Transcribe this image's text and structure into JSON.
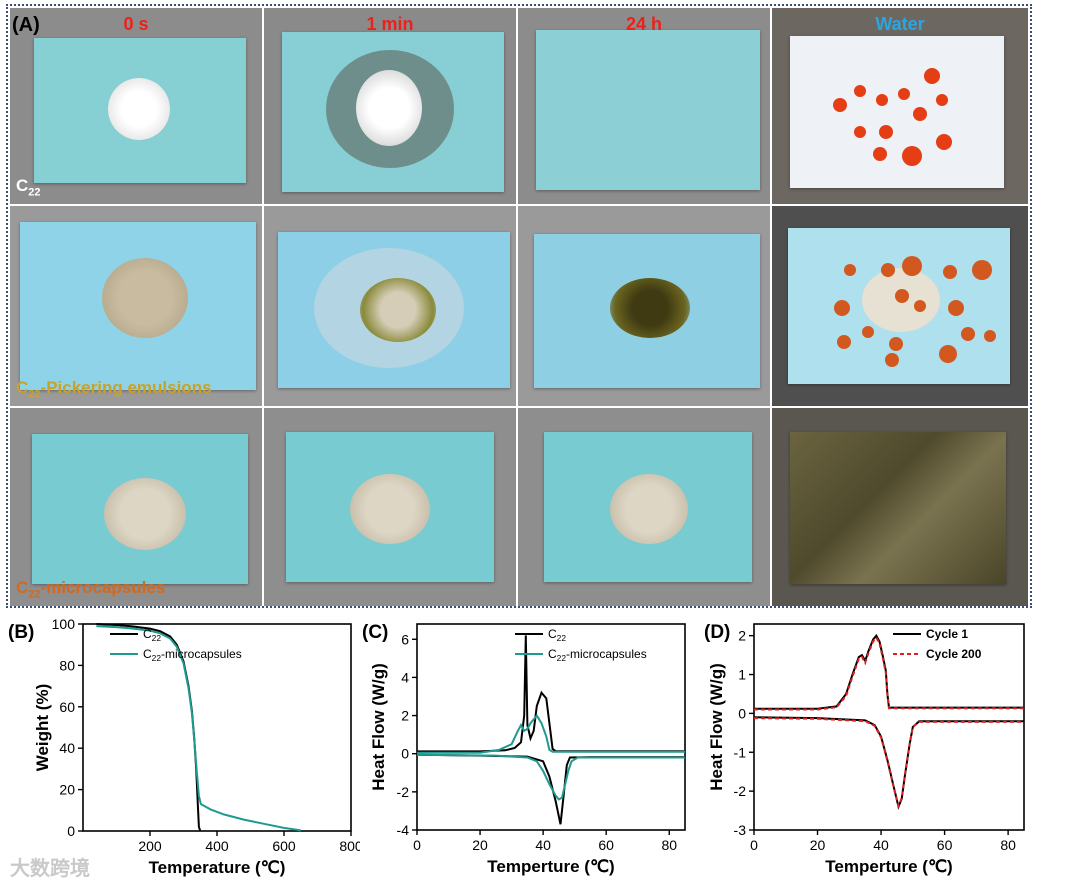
{
  "panel_a": {
    "letter": "(A)",
    "columns": [
      "0 s",
      "1 min",
      "24 h",
      "Water"
    ],
    "rows": [
      {
        "base": "C",
        "sub": "22",
        "suffix": ""
      },
      {
        "base": "C",
        "sub": "22",
        "suffix": "-Pickering emulsions"
      },
      {
        "base": "C",
        "sub": "22",
        "suffix": "-microcapsules"
      }
    ],
    "colors": {
      "time_label": "#e8231b",
      "water_label": "#2aa7df",
      "row1": "#ffffff",
      "row2": "#c9a227",
      "row3": "#d2691e"
    }
  },
  "watermark": "大数跨境",
  "chart_data": [
    {
      "panel": "(B)",
      "type": "line",
      "xlabel": "Temperature (℃)",
      "ylabel": "Weight (%)",
      "xlim": [
        0,
        800
      ],
      "ylim": [
        0,
        100
      ],
      "xticks": [
        "200",
        "400",
        "600",
        "800"
      ],
      "yticks": [
        "0",
        "20",
        "40",
        "60",
        "80",
        "100"
      ],
      "legend_position": "top-right",
      "series": [
        {
          "name": "C22",
          "name_base": "C",
          "name_sub": "22",
          "name_suffix": "",
          "color": "#000000",
          "points": [
            [
              40,
              100
            ],
            [
              100,
              99.5
            ],
            [
              150,
              98.8
            ],
            [
              200,
              97.8
            ],
            [
              230,
              96.5
            ],
            [
              260,
              94
            ],
            [
              280,
              90
            ],
            [
              300,
              82
            ],
            [
              315,
              70
            ],
            [
              325,
              58
            ],
            [
              332,
              45
            ],
            [
              338,
              30
            ],
            [
              343,
              12
            ],
            [
              346,
              2
            ],
            [
              350,
              0
            ]
          ]
        },
        {
          "name": "C22-microcapsules",
          "name_base": "C",
          "name_sub": "22",
          "name_suffix": "-microcapsules",
          "color": "#1f9a8e",
          "points": [
            [
              40,
              99
            ],
            [
              100,
              98.5
            ],
            [
              150,
              97.8
            ],
            [
              200,
              96.8
            ],
            [
              230,
              95.5
            ],
            [
              260,
              93
            ],
            [
              280,
              89
            ],
            [
              300,
              81
            ],
            [
              315,
              69
            ],
            [
              325,
              57
            ],
            [
              333,
              42
            ],
            [
              340,
              28
            ],
            [
              346,
              17
            ],
            [
              352,
              13
            ],
            [
              380,
              10.5
            ],
            [
              420,
              8
            ],
            [
              480,
              5.5
            ],
            [
              540,
              3.5
            ],
            [
              600,
              1.5
            ],
            [
              650,
              0.3
            ]
          ]
        }
      ]
    },
    {
      "panel": "(C)",
      "type": "line",
      "xlabel": "Temperture (℃)",
      "ylabel": "Heat Flow (W/g)",
      "xlim": [
        0,
        85
      ],
      "ylim": [
        -4,
        6.8
      ],
      "xticks": [
        "0",
        "20",
        "40",
        "60",
        "80"
      ],
      "yticks": [
        "-4",
        "-2",
        "0",
        "2",
        "4",
        "6"
      ],
      "legend_position": "top-right",
      "series": [
        {
          "name": "C22 heating",
          "legend_name": "C22",
          "name_base": "C",
          "name_sub": "22",
          "name_suffix": "",
          "color": "#000000",
          "points": [
            [
              0,
              0.12
            ],
            [
              20,
              0.12
            ],
            [
              28,
              0.18
            ],
            [
              31,
              0.3
            ],
            [
              33,
              0.6
            ],
            [
              34,
              2
            ],
            [
              34.5,
              6.2
            ],
            [
              35,
              1.5
            ],
            [
              36,
              0.8
            ],
            [
              37,
              1.2
            ],
            [
              38,
              2.5
            ],
            [
              39.5,
              3.2
            ],
            [
              41,
              2.9
            ],
            [
              42,
              1.6
            ],
            [
              43,
              0.25
            ],
            [
              44,
              0.13
            ],
            [
              85,
              0.13
            ]
          ]
        },
        {
          "name": "C22 cooling",
          "legend_name": "",
          "color": "#000000",
          "points": [
            [
              0,
              -0.05
            ],
            [
              20,
              -0.1
            ],
            [
              35,
              -0.15
            ],
            [
              40,
              -0.4
            ],
            [
              42,
              -1.2
            ],
            [
              44,
              -2.5
            ],
            [
              45.5,
              -3.7
            ],
            [
              46.5,
              -2.2
            ],
            [
              47.5,
              -0.6
            ],
            [
              48.5,
              -0.2
            ],
            [
              55,
              -0.18
            ],
            [
              85,
              -0.18
            ]
          ]
        },
        {
          "name": "C22-microcapsules heating",
          "legend_name": "C22-microcapsules",
          "name_base": "C",
          "name_sub": "22",
          "name_suffix": "-microcapsules",
          "color": "#1f9a8e",
          "points": [
            [
              0,
              0.05
            ],
            [
              20,
              0.05
            ],
            [
              26,
              0.2
            ],
            [
              30,
              0.5
            ],
            [
              32,
              1.2
            ],
            [
              33,
              1.5
            ],
            [
              34,
              1.2
            ],
            [
              35,
              1.3
            ],
            [
              36,
              1.6
            ],
            [
              38,
              2.0
            ],
            [
              39.5,
              1.6
            ],
            [
              41,
              0.9
            ],
            [
              42,
              0.2
            ],
            [
              43,
              0.1
            ],
            [
              85,
              0.1
            ]
          ]
        },
        {
          "name": "C22-microcapsules cooling",
          "legend_name": "",
          "color": "#1f9a8e",
          "points": [
            [
              0,
              -0.05
            ],
            [
              25,
              -0.1
            ],
            [
              35,
              -0.2
            ],
            [
              38,
              -0.4
            ],
            [
              40,
              -0.9
            ],
            [
              42,
              -1.6
            ],
            [
              44,
              -2.2
            ],
            [
              45,
              -2.4
            ],
            [
              46,
              -2.3
            ],
            [
              47,
              -1.6
            ],
            [
              48,
              -0.9
            ],
            [
              49,
              -0.4
            ],
            [
              51,
              -0.2
            ],
            [
              60,
              -0.2
            ],
            [
              85,
              -0.2
            ]
          ]
        }
      ]
    },
    {
      "panel": "(D)",
      "type": "line",
      "xlabel": "Temperture (℃)",
      "ylabel": "Heat Flow (W/g)",
      "xlim": [
        0,
        85
      ],
      "ylim": [
        -3,
        2.3
      ],
      "xticks": [
        "0",
        "20",
        "40",
        "60",
        "80"
      ],
      "yticks": [
        "-3",
        "-2",
        "-1",
        "0",
        "1",
        "2"
      ],
      "legend_position": "top-right",
      "series": [
        {
          "name": "Cycle 1",
          "legend_name": "Cycle 1",
          "name_base": "Cycle 1",
          "name_sub": "",
          "name_suffix": "",
          "color": "#000000",
          "dash": "",
          "points": [
            [
              0,
              0.12
            ],
            [
              20,
              0.12
            ],
            [
              26,
              0.18
            ],
            [
              29,
              0.5
            ],
            [
              31,
              1.0
            ],
            [
              33,
              1.45
            ],
            [
              34,
              1.5
            ],
            [
              35,
              1.35
            ],
            [
              36,
              1.6
            ],
            [
              37.5,
              1.9
            ],
            [
              38.5,
              2.0
            ],
            [
              39.5,
              1.85
            ],
            [
              40.5,
              1.5
            ],
            [
              41.5,
              1.1
            ],
            [
              42,
              0.5
            ],
            [
              42.5,
              0.15
            ],
            [
              85,
              0.15
            ]
          ]
        },
        {
          "name": "Cycle 1 cooling",
          "legend_name": "",
          "color": "#000000",
          "dash": "",
          "points": [
            [
              0,
              -0.1
            ],
            [
              20,
              -0.12
            ],
            [
              35,
              -0.18
            ],
            [
              38,
              -0.3
            ],
            [
              40,
              -0.6
            ],
            [
              42,
              -1.2
            ],
            [
              44,
              -1.9
            ],
            [
              45.5,
              -2.4
            ],
            [
              46.5,
              -2.2
            ],
            [
              47.5,
              -1.6
            ],
            [
              49,
              -0.8
            ],
            [
              50,
              -0.35
            ],
            [
              52,
              -0.2
            ],
            [
              85,
              -0.2
            ]
          ]
        },
        {
          "name": "Cycle 200",
          "legend_name": "Cycle 200",
          "name_base": "Cycle 200",
          "name_sub": "",
          "name_suffix": "",
          "color": "#e02020",
          "dash": "4,3",
          "points": [
            [
              0,
              0.1
            ],
            [
              20,
              0.1
            ],
            [
              26,
              0.16
            ],
            [
              29,
              0.45
            ],
            [
              31,
              0.95
            ],
            [
              33,
              1.4
            ],
            [
              34,
              1.45
            ],
            [
              35,
              1.3
            ],
            [
              36,
              1.55
            ],
            [
              37.5,
              1.85
            ],
            [
              38.5,
              1.95
            ],
            [
              39.5,
              1.8
            ],
            [
              40.5,
              1.45
            ],
            [
              41.5,
              1.05
            ],
            [
              42,
              0.45
            ],
            [
              42.5,
              0.13
            ],
            [
              85,
              0.13
            ]
          ]
        },
        {
          "name": "Cycle 200 cooling",
          "legend_name": "",
          "color": "#e02020",
          "dash": "4,3",
          "points": [
            [
              0,
              -0.12
            ],
            [
              20,
              -0.14
            ],
            [
              35,
              -0.2
            ],
            [
              38,
              -0.32
            ],
            [
              40,
              -0.62
            ],
            [
              42,
              -1.22
            ],
            [
              44,
              -1.92
            ],
            [
              45.5,
              -2.38
            ],
            [
              46.5,
              -2.18
            ],
            [
              47.5,
              -1.58
            ],
            [
              49,
              -0.78
            ],
            [
              50,
              -0.35
            ],
            [
              52,
              -0.22
            ],
            [
              85,
              -0.22
            ]
          ]
        }
      ]
    }
  ]
}
